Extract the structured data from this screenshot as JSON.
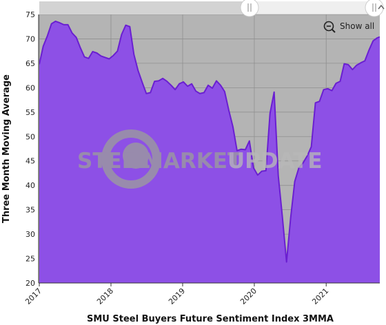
{
  "chart_data": {
    "type": "area",
    "title": "",
    "xlabel": "SMU Steel Buyers Future Sentiment Index 3MMA",
    "ylabel": "Three Month Moving Average",
    "ylim": [
      20,
      75
    ],
    "y_ticks": [
      20,
      25,
      30,
      35,
      40,
      45,
      50,
      55,
      60,
      65,
      70,
      75
    ],
    "xlim": [
      "2017-01-01",
      "2021-10-01"
    ],
    "x_ticks": [
      "2017",
      "2018",
      "2019",
      "2020",
      "2021"
    ],
    "grid": true,
    "legend": "none",
    "colors": {
      "area_fill": "#8d50e6",
      "line": "#6a1fd1",
      "plot_bg": "#b4b4b4",
      "grid": "#8f8f8f",
      "watermark": "#9c9c9c"
    },
    "series": [
      {
        "x": [
          "2017-01-01",
          "2017-01-21",
          "2017-02-11",
          "2017-03-04",
          "2017-03-25",
          "2017-04-15",
          "2017-05-06",
          "2017-05-27",
          "2017-06-17",
          "2017-07-08",
          "2017-07-29",
          "2017-08-19",
          "2017-09-09",
          "2017-09-30",
          "2017-10-21",
          "2017-11-11",
          "2017-12-02",
          "2017-12-23",
          "2018-01-13",
          "2018-02-03",
          "2018-02-24",
          "2018-03-17",
          "2018-04-07",
          "2018-04-28",
          "2018-05-19",
          "2018-06-09",
          "2018-06-30",
          "2018-07-21",
          "2018-08-11",
          "2018-09-01",
          "2018-09-22",
          "2018-10-13",
          "2018-11-03",
          "2018-11-24",
          "2018-12-15",
          "2019-01-05",
          "2019-01-26",
          "2019-02-16",
          "2019-03-09",
          "2019-03-30",
          "2019-04-20",
          "2019-05-11",
          "2019-06-01",
          "2019-06-22",
          "2019-07-13",
          "2019-08-03",
          "2019-08-24",
          "2019-09-14",
          "2019-10-05",
          "2019-10-26",
          "2019-11-16",
          "2019-12-07",
          "2019-12-28",
          "2020-01-18",
          "2020-02-08",
          "2020-02-29",
          "2020-03-21",
          "2020-04-11",
          "2020-05-02",
          "2020-05-23",
          "2020-06-13",
          "2020-07-04",
          "2020-07-25",
          "2020-08-15",
          "2020-09-05",
          "2020-09-26",
          "2020-10-17",
          "2020-11-07",
          "2020-11-28",
          "2020-12-19",
          "2021-01-09",
          "2021-01-30",
          "2021-02-20",
          "2021-03-13",
          "2021-04-03",
          "2021-04-24",
          "2021-05-15",
          "2021-06-05",
          "2021-06-26",
          "2021-07-17",
          "2021-08-07",
          "2021-08-28",
          "2021-09-18",
          "2021-10-01"
        ],
        "values": [
          64.8,
          68.5,
          70.6,
          73.1,
          73.6,
          73.3,
          72.9,
          72.9,
          71.2,
          70.3,
          68.2,
          66.3,
          66.0,
          67.4,
          67.1,
          66.5,
          66.2,
          65.9,
          66.6,
          67.5,
          70.9,
          72.8,
          72.5,
          66.8,
          63.5,
          61.1,
          58.8,
          59.0,
          61.3,
          61.4,
          61.9,
          61.3,
          60.5,
          59.6,
          60.8,
          61.2,
          60.3,
          60.8,
          59.3,
          58.8,
          59.0,
          60.5,
          59.9,
          61.4,
          60.5,
          59.2,
          55.4,
          52.0,
          47.1,
          47.4,
          47.3,
          49.1,
          43.6,
          42.1,
          42.9,
          43.0,
          54.7,
          59.1,
          42.0,
          33.5,
          24.3,
          33.4,
          40.8,
          43.6,
          44.6,
          46.0,
          47.9,
          56.9,
          57.2,
          59.6,
          59.8,
          59.4,
          60.9,
          61.3,
          64.9,
          64.7,
          63.7,
          64.6,
          65.1,
          65.5,
          67.7,
          69.6,
          70.2,
          70.4
        ]
      }
    ]
  },
  "controls": {
    "show_all_label": "Show all",
    "zoom_icon": "zoom-out-icon",
    "handle_left_icon": "drag-handle-icon",
    "handle_right_icon": "drag-handle-icon",
    "scroll_up_icon": "chevron-up-icon"
  },
  "watermark": {
    "word1": "STEEL",
    "word2": "MARKET",
    "word3": "UPDATE"
  }
}
